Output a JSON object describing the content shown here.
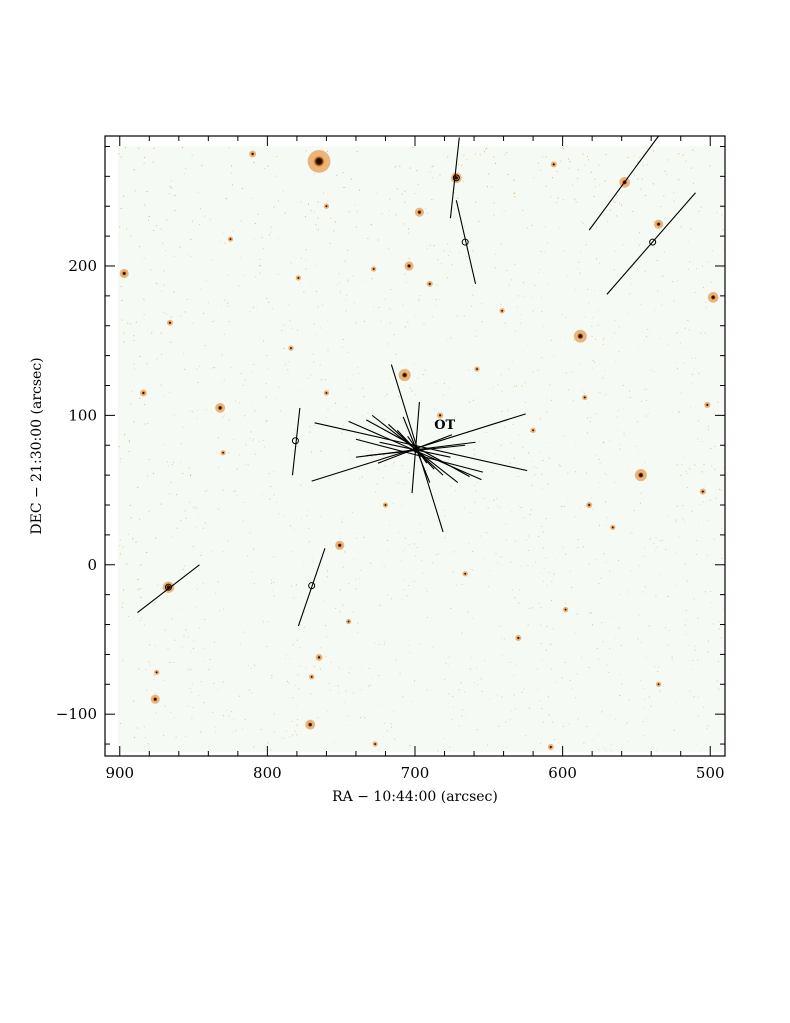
{
  "chart_data": {
    "type": "scatter",
    "title": "",
    "xlabel": "RA − 10:44:00 (arcsec)",
    "ylabel": "DEC − 21:30:00 (arcsec)",
    "xlim": [
      910,
      490
    ],
    "ylim": [
      -128,
      287
    ],
    "x_ticks": [
      900,
      800,
      700,
      600,
      500
    ],
    "x_tick_labels": [
      "900",
      "800",
      "700",
      "600",
      "500"
    ],
    "y_ticks": [
      -100,
      0,
      100,
      200
    ],
    "y_tick_labels": [
      "−100",
      "0",
      "100",
      "200"
    ],
    "grid": false,
    "background": "orange-scale sky image",
    "annotations": [
      {
        "text": "OT",
        "x": 687,
        "y": 91
      }
    ],
    "ot_position": [
      699,
      77
    ],
    "stars": [
      {
        "x": 765,
        "y": 270,
        "r": 6
      },
      {
        "x": 588,
        "y": 153,
        "r": 3.4
      },
      {
        "x": 707,
        "y": 127,
        "r": 3.2
      },
      {
        "x": 547,
        "y": 60,
        "r": 3.2
      },
      {
        "x": 867,
        "y": -15,
        "r": 3
      },
      {
        "x": 672,
        "y": 259,
        "r": 2.8
      },
      {
        "x": 558,
        "y": 256,
        "r": 2.8
      },
      {
        "x": 832,
        "y": 105,
        "r": 2.6
      },
      {
        "x": 897,
        "y": 195,
        "r": 2.4
      },
      {
        "x": 498,
        "y": 179,
        "r": 2.8
      },
      {
        "x": 697,
        "y": 236,
        "r": 2.4
      },
      {
        "x": 704,
        "y": 200,
        "r": 2.4
      },
      {
        "x": 751,
        "y": 13,
        "r": 2.4
      },
      {
        "x": 771,
        "y": -107,
        "r": 2.6
      },
      {
        "x": 876,
        "y": -90,
        "r": 2.4
      },
      {
        "x": 535,
        "y": 228,
        "r": 2.4
      },
      {
        "x": 810,
        "y": 275,
        "r": 1.8
      },
      {
        "x": 884,
        "y": 115,
        "r": 1.8
      },
      {
        "x": 866,
        "y": 162,
        "r": 1.6
      },
      {
        "x": 765,
        "y": -62,
        "r": 1.8
      },
      {
        "x": 608,
        "y": -122,
        "r": 1.6
      },
      {
        "x": 606,
        "y": 268,
        "r": 1.6
      },
      {
        "x": 690,
        "y": 188,
        "r": 1.6
      },
      {
        "x": 728,
        "y": 198,
        "r": 1.4
      },
      {
        "x": 779,
        "y": 192,
        "r": 1.4
      },
      {
        "x": 683,
        "y": 100,
        "r": 1.6
      },
      {
        "x": 502,
        "y": 107,
        "r": 1.6
      },
      {
        "x": 505,
        "y": 49,
        "r": 1.6
      },
      {
        "x": 582,
        "y": 40,
        "r": 1.6
      },
      {
        "x": 630,
        "y": -49,
        "r": 1.6
      },
      {
        "x": 784,
        "y": 145,
        "r": 1.4
      },
      {
        "x": 727,
        "y": -120,
        "r": 1.4
      },
      {
        "x": 770,
        "y": -75,
        "r": 1.4
      },
      {
        "x": 745,
        "y": -38,
        "r": 1.4
      },
      {
        "x": 598,
        "y": -30,
        "r": 1.4
      },
      {
        "x": 566,
        "y": 25,
        "r": 1.4
      },
      {
        "x": 620,
        "y": 90,
        "r": 1.4
      },
      {
        "x": 830,
        "y": 75,
        "r": 1.4
      },
      {
        "x": 825,
        "y": 218,
        "r": 1.4
      },
      {
        "x": 658,
        "y": 131,
        "r": 1.4
      },
      {
        "x": 585,
        "y": 112,
        "r": 1.4
      },
      {
        "x": 641,
        "y": 170,
        "r": 1.4
      },
      {
        "x": 875,
        "y": -72,
        "r": 1.4
      },
      {
        "x": 535,
        "y": -80,
        "r": 1.4
      },
      {
        "x": 760,
        "y": 240,
        "r": 1.4
      },
      {
        "x": 666,
        "y": -6,
        "r": 1.4
      },
      {
        "x": 720,
        "y": 40,
        "r": 1.4
      },
      {
        "x": 760,
        "y": 115,
        "r": 1.4
      }
    ],
    "targets": [
      {
        "x": 672,
        "y": 259,
        "marker": "circle",
        "vector": [
          [
            670,
            286
          ],
          [
            676,
            232
          ]
        ]
      },
      {
        "x": 666,
        "y": 216,
        "marker": "circle",
        "vector": [
          [
            672,
            244
          ],
          [
            659,
            188
          ]
        ]
      },
      {
        "x": 539,
        "y": 216,
        "marker": "circle",
        "vector": [
          [
            510,
            249
          ],
          [
            570,
            181
          ]
        ]
      },
      {
        "x": 781,
        "y": 83,
        "marker": "circle",
        "vector": [
          [
            778,
            105
          ],
          [
            783,
            60
          ]
        ]
      },
      {
        "x": 867,
        "y": -15,
        "marker": "circle",
        "vector": [
          [
            846,
            0
          ],
          [
            888,
            -32
          ]
        ]
      },
      {
        "x": 770,
        "y": -14,
        "marker": "circle",
        "vector": [
          [
            761,
            11
          ],
          [
            779,
            -41
          ]
        ]
      },
      {
        "x": 560,
        "y": 256,
        "marker": "none",
        "vector": [
          [
            535,
            287
          ],
          [
            582,
            224
          ]
        ]
      }
    ],
    "ot_vectors": [
      [
        [
          716,
          134
        ],
        [
          681,
          22
        ]
      ],
      [
        [
          697,
          109
        ],
        [
          702,
          48
        ]
      ],
      [
        [
          768,
          95
        ],
        [
          624,
          63
        ]
      ],
      [
        [
          770,
          56
        ],
        [
          625,
          101
        ]
      ],
      [
        [
          745,
          96
        ],
        [
          655,
          57
        ]
      ],
      [
        [
          733,
          97
        ],
        [
          663,
          59
        ]
      ],
      [
        [
          740,
          84
        ],
        [
          654,
          62
        ]
      ],
      [
        [
          729,
          100
        ],
        [
          671,
          55
        ]
      ],
      [
        [
          724,
          82
        ],
        [
          676,
          72
        ]
      ],
      [
        [
          718,
          94
        ],
        [
          681,
          60
        ]
      ],
      [
        [
          740,
          72
        ],
        [
          659,
          82
        ]
      ],
      [
        [
          725,
          68
        ],
        [
          675,
          87
        ]
      ],
      [
        [
          708,
          99
        ],
        [
          690,
          55
        ]
      ],
      [
        [
          712,
          90
        ],
        [
          687,
          64
        ]
      ],
      [
        [
          733,
          73
        ],
        [
          666,
          80
        ]
      ],
      [
        [
          705,
          86
        ],
        [
          692,
          68
        ]
      ]
    ],
    "colors": {
      "sky": "#f5faf4",
      "star_core": "#1a0a00",
      "star_halo": "#e07b18",
      "noise": "#f0a050",
      "lines": "#000000"
    }
  }
}
